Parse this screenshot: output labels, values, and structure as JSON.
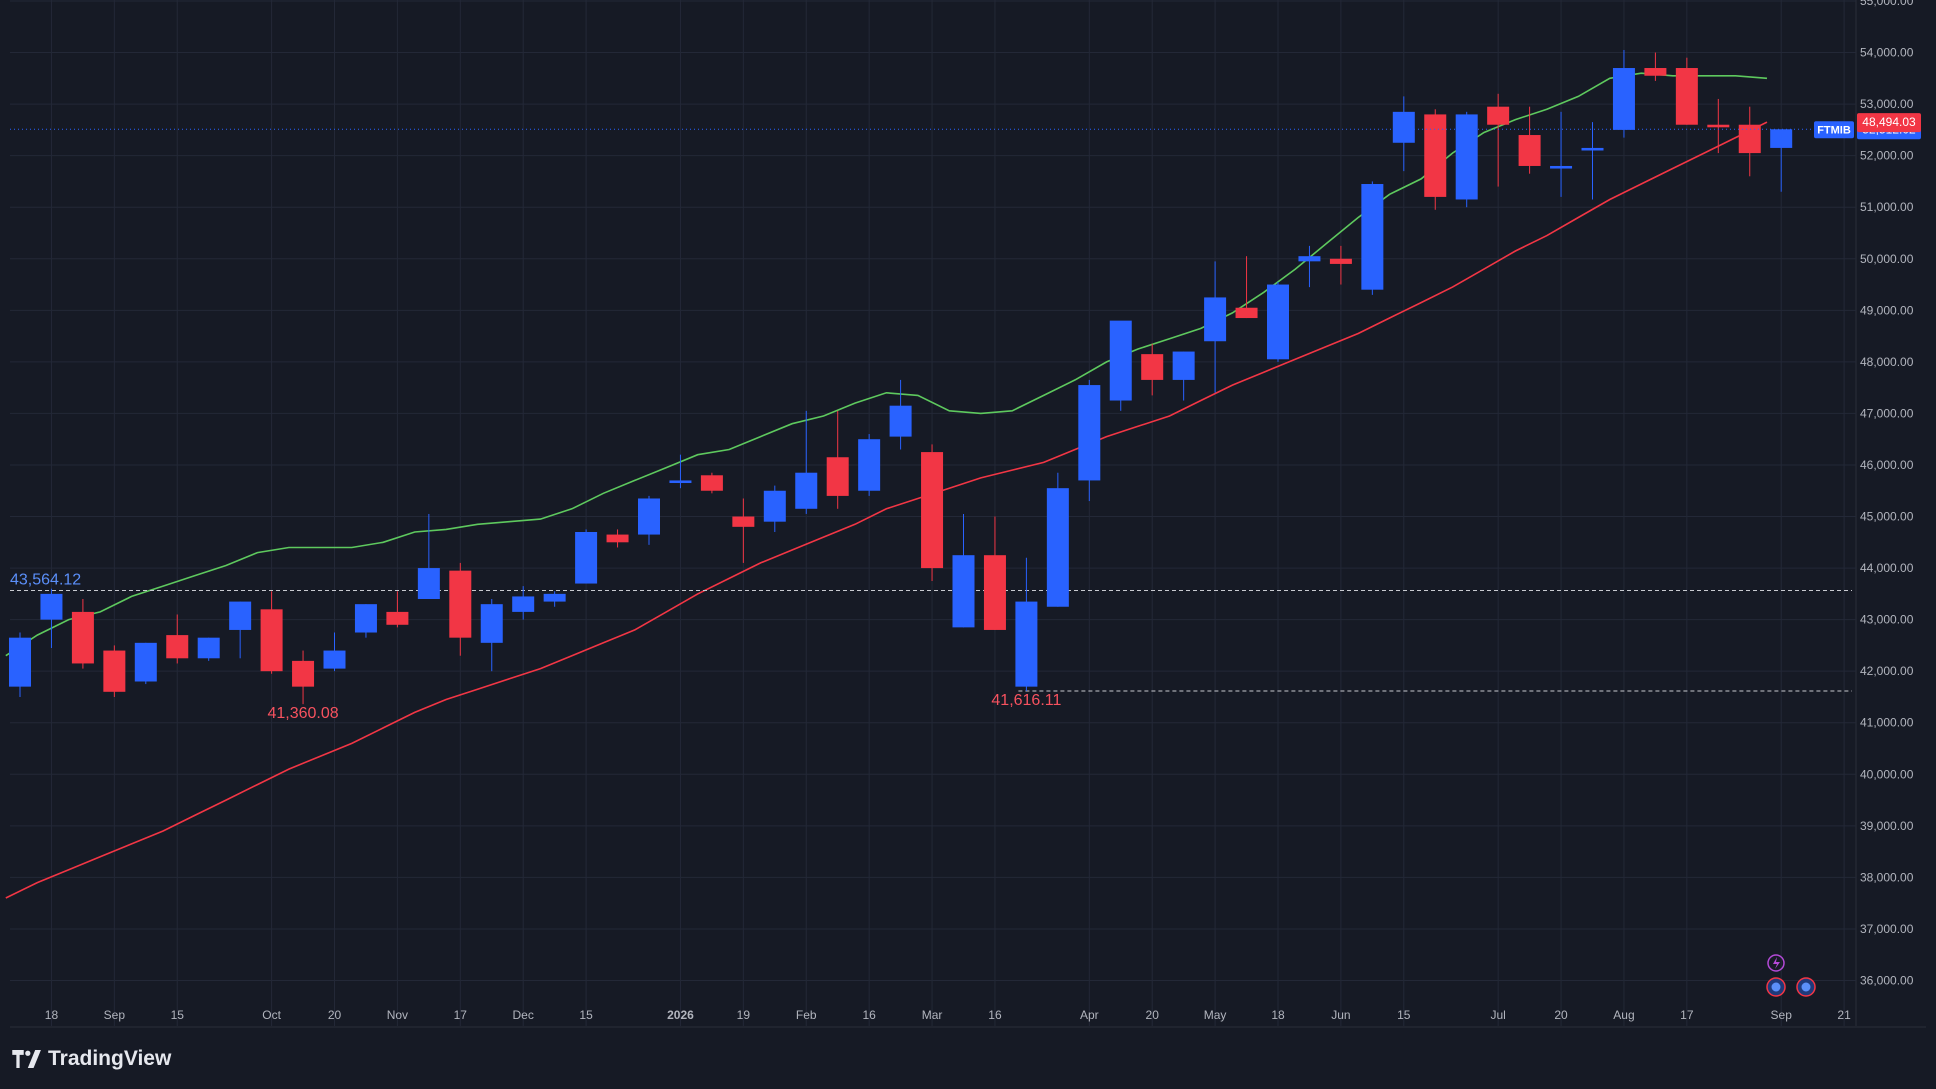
{
  "branding": {
    "name": "TradingView"
  },
  "chart_data": {
    "type": "candlestick",
    "symbol": "FTMIB",
    "interval": "weekly",
    "last_price": "52,512.02",
    "y_range": [
      35600,
      55000
    ],
    "y_ticks": [
      {
        "value": 36000,
        "label": "36,000.00"
      },
      {
        "value": 37000,
        "label": "37,000.00"
      },
      {
        "value": 38000,
        "label": "38,000.00"
      },
      {
        "value": 39000,
        "label": "39,000.00"
      },
      {
        "value": 40000,
        "label": "40,000.00"
      },
      {
        "value": 41000,
        "label": "41,000.00"
      },
      {
        "value": 42000,
        "label": "42,000.00"
      },
      {
        "value": 43000,
        "label": "43,000.00"
      },
      {
        "value": 44000,
        "label": "44,000.00"
      },
      {
        "value": 45000,
        "label": "45,000.00"
      },
      {
        "value": 46000,
        "label": "46,000.00"
      },
      {
        "value": 47000,
        "label": "47,000.00"
      },
      {
        "value": 48000,
        "label": "48,000.00"
      },
      {
        "value": 49000,
        "label": "49,000.00"
      },
      {
        "value": 50000,
        "label": "50,000.00"
      },
      {
        "value": 51000,
        "label": "51,000.00"
      },
      {
        "value": 52000,
        "label": "52,000.00"
      },
      {
        "value": 53000,
        "label": "53,000.00"
      },
      {
        "value": 54000,
        "label": "54,000.00"
      },
      {
        "value": 55000,
        "label": "55,000.00"
      }
    ],
    "x_ticks": [
      {
        "index": 1,
        "label": "18"
      },
      {
        "index": 3,
        "label": "Sep"
      },
      {
        "index": 5,
        "label": "15"
      },
      {
        "index": 8,
        "label": "Oct"
      },
      {
        "index": 10,
        "label": "20"
      },
      {
        "index": 12,
        "label": "Nov"
      },
      {
        "index": 14,
        "label": "17"
      },
      {
        "index": 16,
        "label": "Dec"
      },
      {
        "index": 18,
        "label": "15"
      },
      {
        "index": 21,
        "label": "2026",
        "bold": true
      },
      {
        "index": 23,
        "label": "19"
      },
      {
        "index": 25,
        "label": "Feb"
      },
      {
        "index": 27,
        "label": "16"
      },
      {
        "index": 29,
        "label": "Mar"
      },
      {
        "index": 31,
        "label": "16"
      },
      {
        "index": 34,
        "label": "Apr"
      },
      {
        "index": 36,
        "label": "20"
      },
      {
        "index": 38,
        "label": "May"
      },
      {
        "index": 40,
        "label": "18"
      },
      {
        "index": 42,
        "label": "Jun"
      },
      {
        "index": 44,
        "label": "15"
      },
      {
        "index": 47,
        "label": "Jul"
      },
      {
        "index": 49,
        "label": "20"
      },
      {
        "index": 51,
        "label": "Aug"
      },
      {
        "index": 53,
        "label": "17"
      },
      {
        "index": 56,
        "label": "Sep"
      },
      {
        "index": 58,
        "label": "21"
      }
    ],
    "candles": [
      {
        "o": 41700,
        "h": 42750,
        "l": 41500,
        "c": 42650
      },
      {
        "o": 43000,
        "h": 43600,
        "l": 42450,
        "c": 43500
      },
      {
        "o": 43150,
        "h": 43400,
        "l": 42050,
        "c": 42150
      },
      {
        "o": 42400,
        "h": 42500,
        "l": 41500,
        "c": 41600
      },
      {
        "o": 41800,
        "h": 42550,
        "l": 41750,
        "c": 42550
      },
      {
        "o": 42700,
        "h": 43100,
        "l": 42150,
        "c": 42250
      },
      {
        "o": 42250,
        "h": 42650,
        "l": 42200,
        "c": 42650
      },
      {
        "o": 42800,
        "h": 43350,
        "l": 42250,
        "c": 43350
      },
      {
        "o": 43200,
        "h": 43550,
        "l": 41950,
        "c": 42000
      },
      {
        "o": 42200,
        "h": 42400,
        "l": 41360.08,
        "c": 41700
      },
      {
        "o": 42050,
        "h": 42750,
        "l": 42000,
        "c": 42400
      },
      {
        "o": 42750,
        "h": 43300,
        "l": 42650,
        "c": 43300
      },
      {
        "o": 43150,
        "h": 43550,
        "l": 42850,
        "c": 42900
      },
      {
        "o": 43400,
        "h": 45050,
        "l": 43400,
        "c": 44000
      },
      {
        "o": 43950,
        "h": 44100,
        "l": 42300,
        "c": 42650
      },
      {
        "o": 42550,
        "h": 43400,
        "l": 42000,
        "c": 43300
      },
      {
        "o": 43150,
        "h": 43650,
        "l": 43000,
        "c": 43450
      },
      {
        "o": 43350,
        "h": 43550,
        "l": 43250,
        "c": 43500
      },
      {
        "o": 43700,
        "h": 44750,
        "l": 43700,
        "c": 44700
      },
      {
        "o": 44650,
        "h": 44750,
        "l": 44400,
        "c": 44500
      },
      {
        "o": 44650,
        "h": 45400,
        "l": 44450,
        "c": 45350
      },
      {
        "o": 45650,
        "h": 46200,
        "l": 45550,
        "c": 45700
      },
      {
        "o": 45800,
        "h": 45850,
        "l": 45450,
        "c": 45500
      },
      {
        "o": 45000,
        "h": 45350,
        "l": 44100,
        "c": 44800
      },
      {
        "o": 44900,
        "h": 45600,
        "l": 44700,
        "c": 45500
      },
      {
        "o": 45150,
        "h": 47050,
        "l": 45050,
        "c": 45850
      },
      {
        "o": 46150,
        "h": 47050,
        "l": 45150,
        "c": 45400
      },
      {
        "o": 45500,
        "h": 46600,
        "l": 45400,
        "c": 46500
      },
      {
        "o": 46550,
        "h": 47650,
        "l": 46300,
        "c": 47150
      },
      {
        "o": 46250,
        "h": 46400,
        "l": 43750,
        "c": 44000
      },
      {
        "o": 42850,
        "h": 45050,
        "l": 42850,
        "c": 44250
      },
      {
        "o": 44250,
        "h": 45000,
        "l": 42800,
        "c": 42800
      },
      {
        "o": 41700,
        "h": 44200,
        "l": 41616.11,
        "c": 43350
      },
      {
        "o": 43250,
        "h": 45850,
        "l": 43250,
        "c": 45550
      },
      {
        "o": 45700,
        "h": 47650,
        "l": 45300,
        "c": 47550
      },
      {
        "o": 47250,
        "h": 48750,
        "l": 47050,
        "c": 48800
      },
      {
        "o": 48150,
        "h": 48350,
        "l": 47350,
        "c": 47650
      },
      {
        "o": 47650,
        "h": 48200,
        "l": 47250,
        "c": 48200
      },
      {
        "o": 48400,
        "h": 49950,
        "l": 47400,
        "c": 49250
      },
      {
        "o": 49050,
        "h": 50050,
        "l": 48850,
        "c": 48850
      },
      {
        "o": 48050,
        "h": 49550,
        "l": 48000,
        "c": 49500
      },
      {
        "o": 49950,
        "h": 50250,
        "l": 49450,
        "c": 50050
      },
      {
        "o": 50000,
        "h": 50250,
        "l": 49500,
        "c": 49900
      },
      {
        "o": 49400,
        "h": 51500,
        "l": 49300,
        "c": 51450
      },
      {
        "o": 52250,
        "h": 53150,
        "l": 51700,
        "c": 52850
      },
      {
        "o": 52800,
        "h": 52900,
        "l": 50950,
        "c": 51200
      },
      {
        "o": 51150,
        "h": 52850,
        "l": 51000,
        "c": 52800
      },
      {
        "o": 52950,
        "h": 53200,
        "l": 51400,
        "c": 52600
      },
      {
        "o": 52400,
        "h": 52950,
        "l": 51650,
        "c": 51800
      },
      {
        "o": 51750,
        "h": 52850,
        "l": 51200,
        "c": 51800
      },
      {
        "o": 52100,
        "h": 52650,
        "l": 51150,
        "c": 52150
      },
      {
        "o": 52500,
        "h": 54050,
        "l": 52350,
        "c": 53700
      },
      {
        "o": 53700,
        "h": 54000,
        "l": 53450,
        "c": 53550
      },
      {
        "o": 53700,
        "h": 53900,
        "l": 52600,
        "c": 52600
      },
      {
        "o": 52600,
        "h": 53100,
        "l": 52050,
        "c": 52550
      },
      {
        "o": 52600,
        "h": 52950,
        "l": 51600,
        "c": 52050
      },
      {
        "o": 52150,
        "h": 52450,
        "l": 51300,
        "c": 52512.02
      }
    ],
    "ma_short": [
      42300,
      42700,
      43000,
      43150,
      43450,
      43650,
      43850,
      44050,
      44300,
      44400,
      44400,
      44400,
      44500,
      44700,
      44750,
      44850,
      44900,
      44950,
      45150,
      45450,
      45700,
      45950,
      46200,
      46300,
      46550,
      46800,
      46950,
      47200,
      47400,
      47350,
      47050,
      47000,
      47050,
      47350,
      47650,
      48000,
      48250,
      48450,
      48650,
      48950,
      49350,
      49800,
      50300,
      50800,
      51250,
      51550,
      52050,
      52450,
      52700,
      52900,
      53150,
      53500,
      53600,
      53550,
      53550,
      53550,
      53500
    ],
    "ma_long": [
      37600,
      37900,
      38150,
      38400,
      38650,
      38900,
      39200,
      39500,
      39800,
      40100,
      40350,
      40600,
      40900,
      41200,
      41450,
      41650,
      41850,
      42050,
      42300,
      42550,
      42800,
      43150,
      43500,
      43800,
      44100,
      44350,
      44600,
      44850,
      45150,
      45350,
      45550,
      45750,
      45900,
      46050,
      46300,
      46550,
      46750,
      46950,
      47250,
      47550,
      47800,
      48050,
      48300,
      48550,
      48850,
      49150,
      49450,
      49800,
      50150,
      50450,
      50800,
      51150,
      51450,
      51750,
      52050,
      52350,
      52650
    ],
    "ma_long_label": "48,494.03",
    "horizontal_levels": [
      {
        "value": 43564.12,
        "label": "43,564.12",
        "color": "#5b8ff9"
      },
      {
        "value": 41616.11,
        "label": "41,616.11",
        "color": "#f7525f"
      }
    ],
    "low_annotations": [
      {
        "index": 9,
        "label": "41,360.08"
      }
    ],
    "colors": {
      "background": "#161a25",
      "up": "#2962ff",
      "down": "#f23645",
      "ma_short": "#5ec95e",
      "ma_long": "#f23645",
      "grid": "#232837",
      "axis_text": "#b2b5be",
      "price_line": "#2962ff"
    },
    "legend_icons": [
      "lightning-icon",
      "event-icon",
      "event-icon"
    ]
  }
}
